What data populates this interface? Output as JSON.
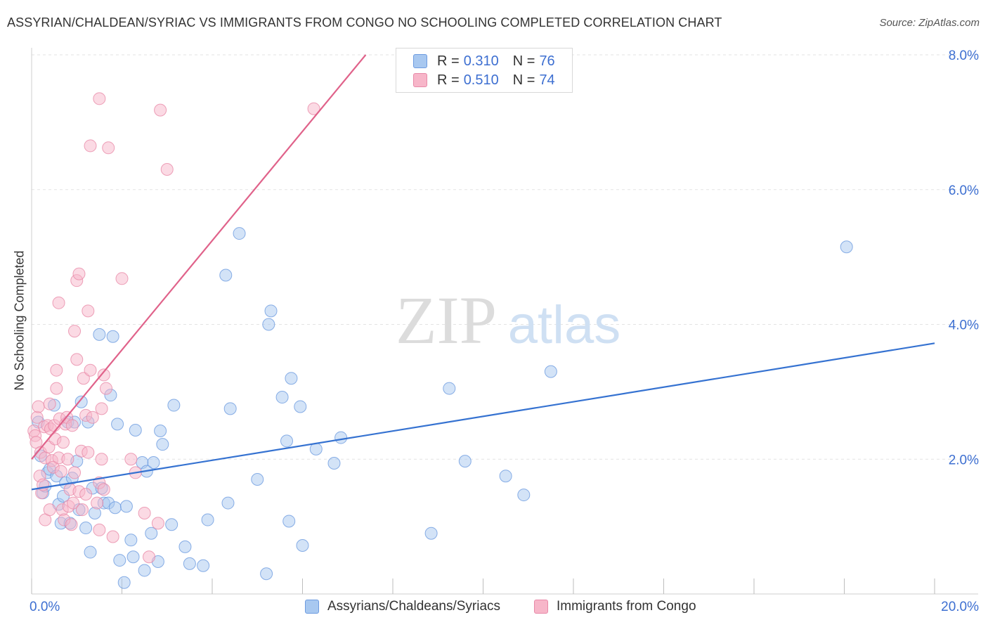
{
  "title": "ASSYRIAN/CHALDEAN/SYRIAC VS IMMIGRANTS FROM CONGO NO SCHOOLING COMPLETED CORRELATION CHART",
  "source": "Source: ZipAtlas.com",
  "watermark": {
    "zip": "ZIP",
    "atlas": "atlas"
  },
  "legend": {
    "series1": {
      "r_label": "R =",
      "r_value": "0.310",
      "n_label": "N =",
      "n_value": "76"
    },
    "series2": {
      "r_label": "R =",
      "r_value": "0.510",
      "n_label": "N =",
      "n_value": "74"
    }
  },
  "colors": {
    "blue_fill": "#a8c8f0",
    "blue_stroke": "#6d9be0",
    "blue_line": "#3572d1",
    "pink_fill": "#f7b6c9",
    "pink_stroke": "#e889a8",
    "pink_line": "#e0628a",
    "axis_text": "#3d6fd1",
    "grid": "#e3e3e3"
  },
  "chart_data": {
    "type": "scatter",
    "title": "ASSYRIAN/CHALDEAN/SYRIAC VS IMMIGRANTS FROM CONGO NO SCHOOLING COMPLETED CORRELATION CHART",
    "xlabel": "",
    "ylabel": "No Schooling Completed",
    "xlim": [
      0,
      20
    ],
    "ylim": [
      0,
      8
    ],
    "x_tick_labels": [
      "0.0%",
      "20.0%"
    ],
    "y_ticks": [
      2,
      4,
      6,
      8
    ],
    "y_tick_labels": [
      "2.0%",
      "4.0%",
      "6.0%",
      "8.0%"
    ],
    "grid": true,
    "series": [
      {
        "name": "Assyrians/Chaldeans/Syriacs",
        "color": "blue",
        "r": 0.31,
        "n": 76,
        "trend": {
          "x0": 0,
          "y0": 1.55,
          "x1": 20,
          "y1": 3.72
        },
        "points": [
          [
            0.15,
            2.55
          ],
          [
            0.2,
            2.05
          ],
          [
            0.25,
            1.5
          ],
          [
            0.35,
            1.8
          ],
          [
            0.4,
            1.85
          ],
          [
            0.5,
            2.8
          ],
          [
            0.55,
            1.75
          ],
          [
            0.6,
            1.33
          ],
          [
            0.65,
            1.05
          ],
          [
            0.7,
            1.45
          ],
          [
            0.75,
            1.65
          ],
          [
            0.8,
            2.55
          ],
          [
            0.85,
            1.05
          ],
          [
            0.9,
            1.72
          ],
          [
            0.95,
            2.55
          ],
          [
            1.0,
            1.97
          ],
          [
            1.05,
            1.25
          ],
          [
            1.1,
            2.85
          ],
          [
            1.2,
            0.98
          ],
          [
            1.25,
            2.55
          ],
          [
            1.3,
            0.62
          ],
          [
            1.35,
            1.57
          ],
          [
            1.4,
            1.2
          ],
          [
            1.5,
            3.85
          ],
          [
            1.55,
            1.57
          ],
          [
            1.6,
            1.35
          ],
          [
            1.7,
            1.35
          ],
          [
            1.75,
            2.95
          ],
          [
            1.8,
            3.82
          ],
          [
            1.85,
            1.28
          ],
          [
            1.9,
            2.52
          ],
          [
            1.95,
            0.5
          ],
          [
            2.05,
            0.17
          ],
          [
            2.1,
            1.3
          ],
          [
            2.2,
            0.8
          ],
          [
            2.25,
            0.55
          ],
          [
            2.3,
            2.43
          ],
          [
            2.45,
            1.95
          ],
          [
            2.5,
            0.35
          ],
          [
            2.55,
            1.82
          ],
          [
            2.65,
            0.9
          ],
          [
            2.7,
            1.95
          ],
          [
            2.8,
            0.48
          ],
          [
            2.85,
            2.42
          ],
          [
            2.9,
            2.22
          ],
          [
            3.1,
            1.03
          ],
          [
            3.15,
            2.8
          ],
          [
            3.4,
            0.7
          ],
          [
            3.5,
            0.45
          ],
          [
            3.8,
            0.42
          ],
          [
            3.9,
            1.1
          ],
          [
            4.3,
            4.73
          ],
          [
            4.35,
            1.35
          ],
          [
            4.4,
            2.75
          ],
          [
            4.6,
            5.35
          ],
          [
            5.0,
            1.7
          ],
          [
            5.2,
            0.3
          ],
          [
            5.25,
            4.0
          ],
          [
            5.3,
            4.2
          ],
          [
            5.55,
            2.92
          ],
          [
            5.65,
            2.27
          ],
          [
            5.7,
            1.08
          ],
          [
            5.75,
            3.2
          ],
          [
            5.95,
            2.78
          ],
          [
            6.0,
            0.72
          ],
          [
            6.3,
            2.15
          ],
          [
            6.7,
            1.94
          ],
          [
            6.85,
            2.32
          ],
          [
            8.85,
            0.9
          ],
          [
            9.25,
            3.05
          ],
          [
            9.6,
            1.97
          ],
          [
            10.5,
            1.75
          ],
          [
            10.9,
            1.47
          ],
          [
            11.5,
            3.3
          ],
          [
            18.05,
            5.15
          ],
          [
            0.3,
            1.6
          ]
        ]
      },
      {
        "name": "Immigrants from Congo",
        "color": "pink",
        "r": 0.51,
        "n": 74,
        "trend": {
          "x0": 0,
          "y0": 2.0,
          "x1": 7.4,
          "y1": 8.0
        },
        "points": [
          [
            0.05,
            2.42
          ],
          [
            0.08,
            2.35
          ],
          [
            0.1,
            2.25
          ],
          [
            0.12,
            2.62
          ],
          [
            0.15,
            2.78
          ],
          [
            0.18,
            1.75
          ],
          [
            0.2,
            2.1
          ],
          [
            0.22,
            1.5
          ],
          [
            0.25,
            1.62
          ],
          [
            0.28,
            2.48
          ],
          [
            0.3,
            2.02
          ],
          [
            0.3,
            1.1
          ],
          [
            0.35,
            2.5
          ],
          [
            0.38,
            2.18
          ],
          [
            0.4,
            2.82
          ],
          [
            0.42,
            2.45
          ],
          [
            0.45,
            1.98
          ],
          [
            0.48,
            1.88
          ],
          [
            0.5,
            2.5
          ],
          [
            0.52,
            2.3
          ],
          [
            0.55,
            3.05
          ],
          [
            0.55,
            3.32
          ],
          [
            0.6,
            4.32
          ],
          [
            0.6,
            2.02
          ],
          [
            0.62,
            2.6
          ],
          [
            0.65,
            1.82
          ],
          [
            0.68,
            1.25
          ],
          [
            0.7,
            2.25
          ],
          [
            0.72,
            1.1
          ],
          [
            0.75,
            2.52
          ],
          [
            0.78,
            2.62
          ],
          [
            0.8,
            2.0
          ],
          [
            0.82,
            1.3
          ],
          [
            0.85,
            1.55
          ],
          [
            0.88,
            1.03
          ],
          [
            0.9,
            2.5
          ],
          [
            0.92,
            1.35
          ],
          [
            0.95,
            1.8
          ],
          [
            0.95,
            3.9
          ],
          [
            1.0,
            3.48
          ],
          [
            1.0,
            4.65
          ],
          [
            1.05,
            4.75
          ],
          [
            1.05,
            1.52
          ],
          [
            1.1,
            2.12
          ],
          [
            1.12,
            1.25
          ],
          [
            1.15,
            3.2
          ],
          [
            1.2,
            2.65
          ],
          [
            1.2,
            1.48
          ],
          [
            1.25,
            2.1
          ],
          [
            1.25,
            4.2
          ],
          [
            1.3,
            3.32
          ],
          [
            1.3,
            6.65
          ],
          [
            1.35,
            2.62
          ],
          [
            1.45,
            1.35
          ],
          [
            1.5,
            1.65
          ],
          [
            1.5,
            7.35
          ],
          [
            1.5,
            0.95
          ],
          [
            1.55,
            2.75
          ],
          [
            1.55,
            2.0
          ],
          [
            1.6,
            1.55
          ],
          [
            1.6,
            3.25
          ],
          [
            1.65,
            3.05
          ],
          [
            1.7,
            6.62
          ],
          [
            1.8,
            0.85
          ],
          [
            2.0,
            4.68
          ],
          [
            2.2,
            2.0
          ],
          [
            2.3,
            1.8
          ],
          [
            2.5,
            1.2
          ],
          [
            2.6,
            0.55
          ],
          [
            2.8,
            1.05
          ],
          [
            2.85,
            7.18
          ],
          [
            3.0,
            6.3
          ],
          [
            6.25,
            7.2
          ],
          [
            0.4,
            1.25
          ]
        ]
      }
    ]
  },
  "bottom_legend": {
    "item1": "Assyrians/Chaldeans/Syriacs",
    "item2": "Immigrants from Congo"
  }
}
